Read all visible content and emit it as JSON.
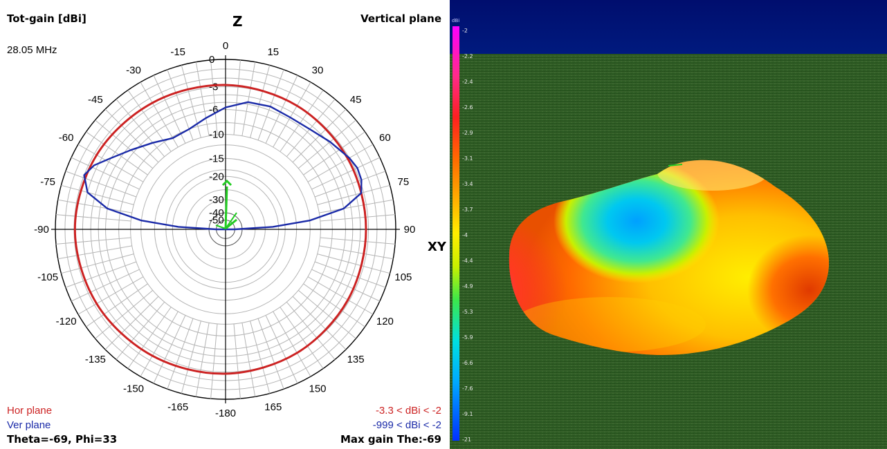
{
  "header": {
    "quantity_label": "Tot-gain [dBi]",
    "plane_label": "Vertical plane",
    "frequency": "28.05 MHz"
  },
  "footer": {
    "hor_legend": "Hor plane",
    "ver_legend": "Ver plane",
    "hor_range": "-3.3 < dBi < -2",
    "ver_range": "-999 < dBi < -2",
    "cursor": "Theta=-69, Phi=33",
    "max_gain": "Max gain The:-69"
  },
  "colors": {
    "hor_plane": "#cc2222",
    "ver_plane": "#1a2aa8",
    "grid": "#b4b4b4",
    "axis": "#000000",
    "ground": "#2d5a22",
    "sky": "#00107a"
  },
  "chart_data": [
    {
      "type": "polar",
      "orientation": "vertical plane, 0° up (Z), ±90° horizontal (XY), ±180° down",
      "axis_labels": {
        "top": "Z",
        "right": "XY"
      },
      "angle_ticks": [
        0,
        15,
        30,
        45,
        60,
        75,
        90,
        105,
        120,
        135,
        150,
        165,
        -180,
        -165,
        -150,
        -135,
        -120,
        -105,
        -90,
        -75,
        -60,
        -45,
        -30,
        -15
      ],
      "radial_ticks": [
        "0",
        "-3",
        "-6",
        "-10",
        "-15",
        "-20",
        "-30",
        "-40",
        "-50"
      ],
      "radial_scale": "ARRL log",
      "series": [
        {
          "name": "Hor plane",
          "color": "#cc2222",
          "points": [
            {
              "angle": 0,
              "gain": -2.8
            },
            {
              "angle": 30,
              "gain": -3.0
            },
            {
              "angle": 60,
              "gain": -3.2
            },
            {
              "angle": 90,
              "gain": -3.3
            },
            {
              "angle": 120,
              "gain": -3.2
            },
            {
              "angle": 150,
              "gain": -3.0
            },
            {
              "angle": 180,
              "gain": -2.8
            },
            {
              "angle": 210,
              "gain": -2.6
            },
            {
              "angle": 240,
              "gain": -2.3
            },
            {
              "angle": 270,
              "gain": -2.1
            },
            {
              "angle": 300,
              "gain": -2.3
            },
            {
              "angle": 330,
              "gain": -2.6
            }
          ]
        },
        {
          "name": "Ver plane",
          "color": "#1a2aa8",
          "points": [
            {
              "angle": -90,
              "gain": -50
            },
            {
              "angle": -87,
              "gain": -22
            },
            {
              "angle": -84,
              "gain": -12
            },
            {
              "angle": -80,
              "gain": -6
            },
            {
              "angle": -75,
              "gain": -3.0
            },
            {
              "angle": -69,
              "gain": -2.0
            },
            {
              "angle": -64,
              "gain": -2.6
            },
            {
              "angle": -58,
              "gain": -4.0
            },
            {
              "angle": -50,
              "gain": -5.5
            },
            {
              "angle": -40,
              "gain": -7.0
            },
            {
              "angle": -30,
              "gain": -8.2
            },
            {
              "angle": -20,
              "gain": -8.0
            },
            {
              "angle": -10,
              "gain": -7.0
            },
            {
              "angle": 0,
              "gain": -5.7
            },
            {
              "angle": 10,
              "gain": -4.7
            },
            {
              "angle": 20,
              "gain": -4.5
            },
            {
              "angle": 30,
              "gain": -4.7
            },
            {
              "angle": 40,
              "gain": -4.5
            },
            {
              "angle": 50,
              "gain": -3.8
            },
            {
              "angle": 60,
              "gain": -3.0
            },
            {
              "angle": 65,
              "gain": -2.7
            },
            {
              "angle": 70,
              "gain": -2.8
            },
            {
              "angle": 75,
              "gain": -3.3
            },
            {
              "angle": 80,
              "gain": -6
            },
            {
              "angle": 84,
              "gain": -12
            },
            {
              "angle": 87,
              "gain": -22
            },
            {
              "angle": 90,
              "gain": -50
            }
          ]
        }
      ]
    },
    {
      "type": "colorbar",
      "unit": "dBi",
      "ticks": [
        "-2",
        "-2.2",
        "-2.4",
        "-2.6",
        "-2.9",
        "-3.1",
        "-3.4",
        "-3.7",
        "-4",
        "-4.4",
        "-4.9",
        "-5.3",
        "-5.9",
        "-6.6",
        "-7.6",
        "-9.1",
        "-21"
      ],
      "colors": [
        "#ff00ff",
        "#ff2a8a",
        "#ff2020",
        "#ff6a00",
        "#ffb000",
        "#ffee00",
        "#c8f000",
        "#3ce84a",
        "#00e0e0",
        "#00a8ff",
        "#0040ff"
      ]
    }
  ]
}
